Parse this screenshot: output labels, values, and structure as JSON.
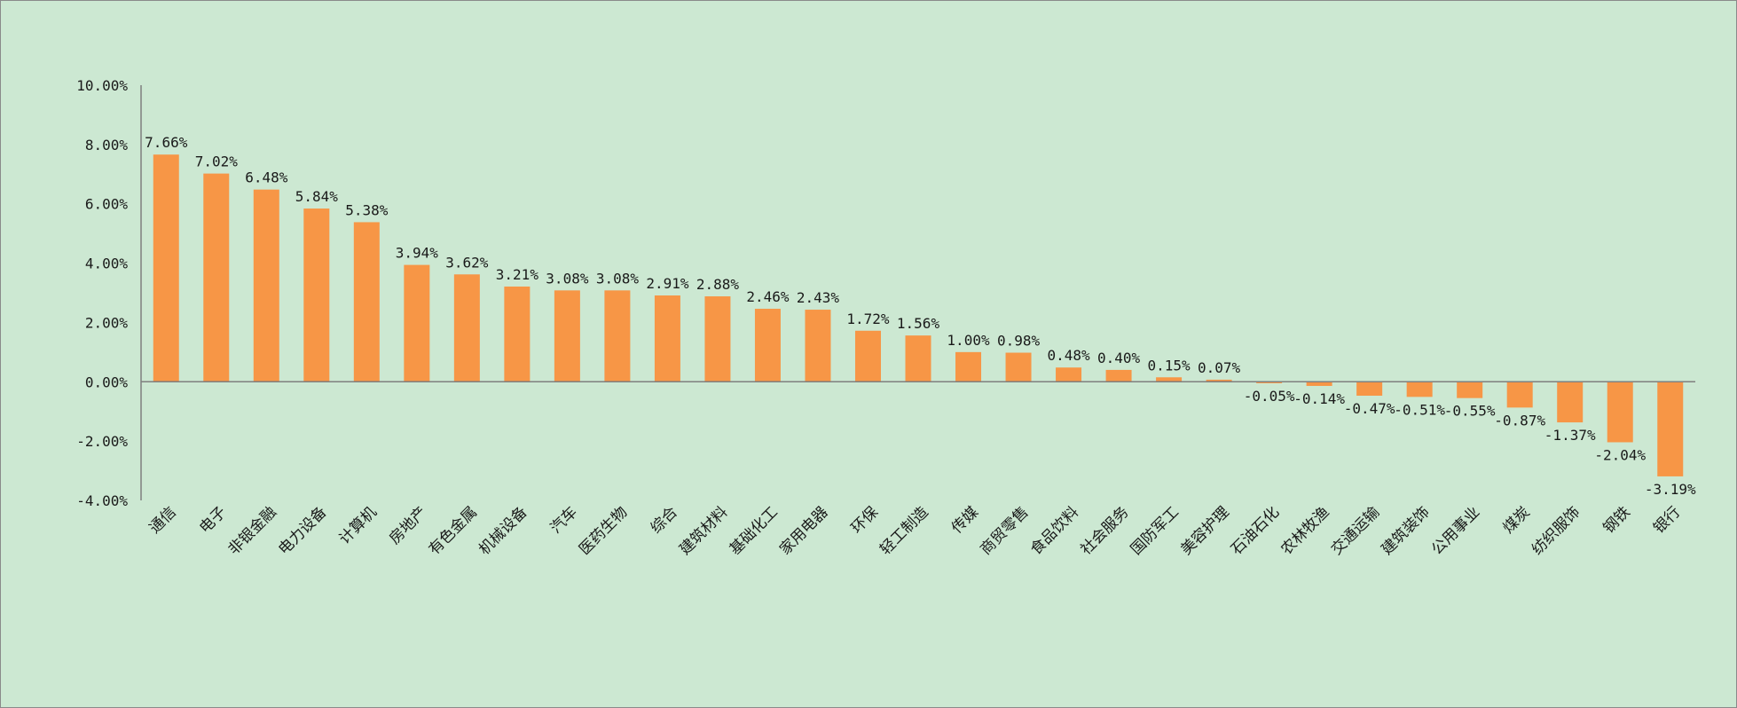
{
  "chart_data": {
    "type": "bar",
    "title": "",
    "xlabel": "",
    "ylabel": "",
    "ylim": [
      -4,
      10
    ],
    "y_ticks": [
      10,
      8,
      6,
      4,
      2,
      0,
      -2,
      -4
    ],
    "y_tick_labels": [
      "10.00%",
      "8.00%",
      "6.00%",
      "4.00%",
      "2.00%",
      "0.00%",
      "-2.00%",
      "-4.00%"
    ],
    "grid": false,
    "legend": "none",
    "bar_color": "#f79646",
    "background_color": "#cce8d2",
    "categories": [
      "通信",
      "电子",
      "非银金融",
      "电力设备",
      "计算机",
      "房地产",
      "有色金属",
      "机械设备",
      "汽车",
      "医药生物",
      "综合",
      "建筑材料",
      "基础化工",
      "家用电器",
      "环保",
      "轻工制造",
      "传媒",
      "商贸零售",
      "食品饮料",
      "社会服务",
      "国防军工",
      "美容护理",
      "石油石化",
      "农林牧渔",
      "交通运输",
      "建筑装饰",
      "公用事业",
      "煤炭",
      "纺织服饰",
      "钢铁",
      "银行"
    ],
    "values": [
      7.66,
      7.02,
      6.48,
      5.84,
      5.38,
      3.94,
      3.62,
      3.21,
      3.08,
      3.08,
      2.91,
      2.88,
      2.46,
      2.43,
      1.72,
      1.56,
      1.0,
      0.98,
      0.48,
      0.4,
      0.15,
      0.07,
      -0.05,
      -0.14,
      -0.47,
      -0.51,
      -0.55,
      -0.87,
      -1.37,
      -2.04,
      -3.19
    ],
    "data_labels": [
      "7.66%",
      "7.02%",
      "6.48%",
      "5.84%",
      "5.38%",
      "3.94%",
      "3.62%",
      "3.21%",
      "3.08%",
      "3.08%",
      "2.91%",
      "2.88%",
      "2.46%",
      "2.43%",
      "1.72%",
      "1.56%",
      "1.00%",
      "0.98%",
      "0.48%",
      "0.40%",
      "0.15%",
      "0.07%",
      "-0.05%",
      "-0.14%",
      "-0.47%",
      "-0.51%",
      "-0.55%",
      "-0.87%",
      "-1.37%",
      "-2.04%",
      "-3.19%"
    ]
  }
}
